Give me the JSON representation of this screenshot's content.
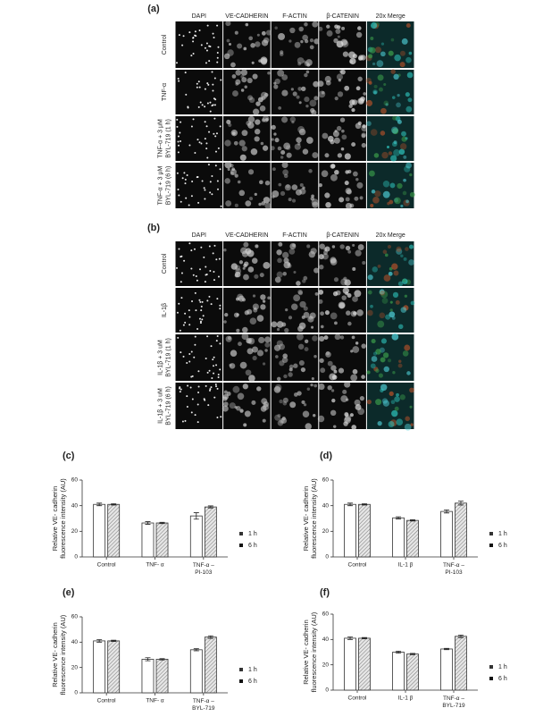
{
  "panels": [
    {
      "label": "(a)",
      "columns": [
        {
          "text": "DAPI",
          "color": "#3fb6d8"
        },
        {
          "text": "VE-CADHERIN",
          "color": "#2fae7a"
        },
        {
          "text": "F-ACTIN",
          "color": "#e0332b"
        },
        {
          "text": "β-CATENIN",
          "color": "#e8a21c"
        },
        {
          "text": "20x Merge",
          "color": "#222222"
        }
      ],
      "rows": [
        [
          "Control"
        ],
        [
          "TNF-α"
        ],
        [
          "TNF-α + 3 μM",
          "BYL-719 (1 h)"
        ],
        [
          "TNF-α + 3 μM",
          "BYL-719 (6 h)"
        ]
      ]
    },
    {
      "label": "(b)",
      "columns": [
        {
          "text": "DAPI",
          "color": "#3fb6d8"
        },
        {
          "text": "VE-CADHERIN",
          "color": "#2fae7a"
        },
        {
          "text": "F-ACTIN",
          "color": "#e0332b"
        },
        {
          "text": "β-CATENIN",
          "color": "#e8a21c"
        },
        {
          "text": "20x Merge",
          "color": "#222222"
        }
      ],
      "rows": [
        [
          "Control"
        ],
        [
          "IL-1β"
        ],
        [
          "IL-1β + 3 uM",
          "BYL-719 (1 h)"
        ],
        [
          "IL-1β + 3 uM",
          "BYL-719 (6 h)"
        ]
      ]
    }
  ],
  "chart_data": [
    {
      "type": "bar",
      "label": "(c)",
      "ylabel": [
        "Relative VE- cadherin",
        "fluorescence intensity (AU)"
      ],
      "categories": [
        "Control",
        "TNF- α",
        "TNF-α –\nPI-103"
      ],
      "ylim": [
        0,
        60
      ],
      "yticks": [
        0,
        20,
        40,
        60
      ],
      "legend": "right",
      "series": [
        {
          "name": "1 h",
          "color": "#ffffff",
          "values": [
            41,
            26.5,
            32
          ],
          "errors": [
            1,
            1,
            2.5
          ]
        },
        {
          "name": "6 h",
          "color": "#d9d9d9",
          "pattern": "hatch",
          "values": [
            41,
            26.5,
            39
          ],
          "errors": [
            0.5,
            0.5,
            0.8
          ]
        }
      ]
    },
    {
      "type": "bar",
      "label": "(d)",
      "ylabel": [
        "Relative VE- cadherin",
        "fluorescence intensity (AU)"
      ],
      "categories": [
        "Control",
        "IL-1 β",
        "TNF-α –\nPI-103"
      ],
      "ylim": [
        0,
        60
      ],
      "yticks": [
        0,
        20,
        40,
        60
      ],
      "legend": "right",
      "series": [
        {
          "name": "1 h",
          "color": "#ffffff",
          "values": [
            41,
            30.5,
            35.5
          ],
          "errors": [
            1,
            0.8,
            1.2
          ]
        },
        {
          "name": "6 h",
          "color": "#d9d9d9",
          "pattern": "hatch",
          "values": [
            41,
            28.5,
            42
          ],
          "errors": [
            0.5,
            0.5,
            1.5
          ]
        }
      ]
    },
    {
      "type": "bar",
      "label": "(e)",
      "ylabel": [
        "Relative VE- cadherin",
        "fluorescence intensity (AU)"
      ],
      "categories": [
        "Control",
        "TNF- α",
        "TNF-α –\nBYL-719"
      ],
      "ylim": [
        0,
        60
      ],
      "yticks": [
        0,
        20,
        40,
        60
      ],
      "legend": "right",
      "series": [
        {
          "name": "1 h",
          "color": "#ffffff",
          "values": [
            41,
            26.5,
            34
          ],
          "errors": [
            1,
            1.2,
            0.8
          ]
        },
        {
          "name": "6 h",
          "color": "#d9d9d9",
          "pattern": "hatch",
          "values": [
            41,
            26.5,
            44
          ],
          "errors": [
            0.5,
            0.5,
            1
          ]
        }
      ]
    },
    {
      "type": "bar",
      "label": "(f)",
      "ylabel": [
        "Relative VE- cadherin",
        "fluorescence intensity (AU)"
      ],
      "categories": [
        "Control",
        "IL-1 β",
        "TNF-α –\nBYL-719"
      ],
      "ylim": [
        0,
        60
      ],
      "yticks": [
        0,
        20,
        40,
        60
      ],
      "legend": "right",
      "series": [
        {
          "name": "1 h",
          "color": "#ffffff",
          "values": [
            41,
            30,
            32.5
          ],
          "errors": [
            1,
            0.8,
            0.5
          ]
        },
        {
          "name": "6 h",
          "color": "#d9d9d9",
          "pattern": "hatch",
          "values": [
            41,
            28.5,
            42.5
          ],
          "errors": [
            0.5,
            0.5,
            1
          ]
        }
      ]
    }
  ]
}
